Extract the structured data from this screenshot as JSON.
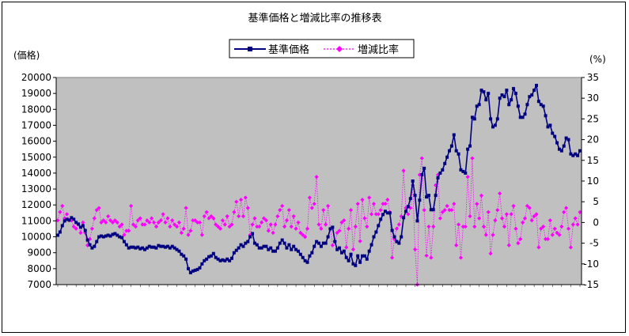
{
  "chart_data": {
    "type": "line",
    "title": "基準価格と増減比率の推移表",
    "ylabel": "(価格)",
    "y2label": "(%)",
    "ylim": [
      7000,
      20000
    ],
    "y2lim": [
      -15,
      35
    ],
    "yticks": [
      7000,
      8000,
      9000,
      10000,
      11000,
      12000,
      13000,
      14000,
      15000,
      16000,
      17000,
      18000,
      19000,
      20000
    ],
    "y2ticks": [
      -15,
      -10,
      -5,
      0,
      5,
      10,
      15,
      20,
      25,
      30,
      35
    ],
    "grid": false,
    "legend_position": "top-center",
    "plot_background": "#c0c0c0",
    "series": [
      {
        "name": "基準価格",
        "axis": "left",
        "color": "#000080",
        "marker": "square",
        "line": "solid",
        "values": [
          10100,
          10300,
          10700,
          11000,
          11100,
          11050,
          11200,
          11100,
          10900,
          10800,
          10600,
          10700,
          10400,
          9800,
          9500,
          9300,
          9400,
          9700,
          10000,
          10050,
          10000,
          10050,
          10100,
          10050,
          10150,
          10200,
          10100,
          10000,
          9950,
          9700,
          9500,
          9300,
          9350,
          9350,
          9300,
          9350,
          9250,
          9300,
          9200,
          9300,
          9400,
          9350,
          9350,
          9300,
          9450,
          9400,
          9400,
          9350,
          9400,
          9300,
          9400,
          9300,
          9200,
          9100,
          8900,
          8800,
          8600,
          8000,
          7750,
          7850,
          7900,
          7950,
          8050,
          8300,
          8500,
          8600,
          8750,
          8800,
          8950,
          8700,
          8600,
          8500,
          8550,
          8500,
          8600,
          8500,
          8650,
          9000,
          9150,
          9300,
          9500,
          9400,
          9600,
          9700,
          10000,
          10200,
          9600,
          9500,
          9300,
          9300,
          9400,
          9400,
          9200,
          9300,
          9100,
          9100,
          9300,
          9600,
          9800,
          9600,
          9300,
          9500,
          9200,
          9400,
          9200,
          9100,
          8900,
          8700,
          8500,
          8400,
          8800,
          9000,
          9400,
          9700,
          9600,
          9400,
          9600,
          9600,
          10000,
          10500,
          10600,
          9700,
          9200,
          9300,
          9000,
          9100,
          8700,
          8500,
          8900,
          8300,
          8200,
          8800,
          8400,
          8800,
          8800,
          8600,
          9100,
          9500,
          10000,
          10300,
          10700,
          11100,
          11400,
          11600,
          11500,
          11500,
          10400,
          10000,
          9700,
          9600,
          10000,
          11200,
          11600,
          11900,
          12400,
          13500,
          12600,
          11000,
          12300,
          13900,
          14300,
          12500,
          12600,
          11700,
          11700,
          12600,
          13700,
          14000,
          14200,
          14600,
          15000,
          15400,
          15700,
          16400,
          15400,
          15200,
          14200,
          14100,
          14000,
          15500,
          15700,
          17500,
          17400,
          18200,
          18300,
          19200,
          19100,
          18600,
          19000,
          17400,
          16900,
          17000,
          17400,
          18700,
          18900,
          18800,
          19200,
          18300,
          18600,
          19300,
          19000,
          18200,
          17500,
          17500,
          17700,
          18300,
          18800,
          18900,
          19200,
          19500,
          18500,
          18300,
          18200,
          17600,
          16900,
          17000,
          16500,
          16300,
          15900,
          15500,
          15400,
          15700,
          16200,
          16100,
          15200,
          15100,
          15200,
          15100,
          15400
        ]
      },
      {
        "name": "増減比率",
        "axis": "right",
        "color": "#ff00ff",
        "marker": "diamond",
        "line": "dotted",
        "values": [
          0.5,
          2.5,
          4,
          1,
          2,
          0.5,
          0.5,
          -1,
          -1.5,
          -0.5,
          -2.5,
          0,
          -2.5,
          -5.5,
          -4,
          -1.5,
          1,
          3,
          3.5,
          0,
          0.5,
          0,
          1.5,
          0.5,
          0,
          0.5,
          0,
          -1,
          -0.5,
          -3,
          -2,
          -2,
          4,
          -0.5,
          -1,
          0.5,
          1,
          -0.5,
          -0.5,
          0.5,
          0,
          1,
          0,
          -1,
          0,
          0.5,
          2,
          0,
          1,
          -1,
          0.5,
          -0.5,
          -1,
          0,
          -2.5,
          -1.5,
          3.5,
          -3,
          -2,
          0.5,
          0.5,
          0,
          0,
          -3,
          1.5,
          2.5,
          1,
          1.5,
          1,
          -0.5,
          -1,
          -1.5,
          0.5,
          -0.5,
          1.5,
          -1,
          -0.5,
          2.5,
          5,
          1.5,
          5.5,
          1.5,
          6,
          3.5,
          -3,
          -0.5,
          1,
          -1,
          -1,
          0,
          1,
          0.5,
          -2,
          -0.5,
          -2.5,
          -0.5,
          1.5,
          3,
          4,
          -1,
          0.5,
          3,
          -1,
          1.5,
          -1.5,
          0,
          -2.5,
          -3,
          -3.5,
          -1.5,
          6,
          3.5,
          4.5,
          11,
          -0.5,
          -1.5,
          3,
          -0.5,
          4,
          -1.5,
          -5.5,
          -4.5,
          -2.5,
          -2,
          0,
          0.5,
          -6,
          -1.5,
          3,
          -6.5,
          -1,
          4.5,
          -4.5,
          5.5,
          1,
          -1,
          6,
          2,
          4.5,
          2,
          2,
          3,
          4.5,
          4.5,
          5.5,
          2.5,
          -8.5,
          -4,
          -1.5,
          -0.5,
          1.5,
          12.5,
          3.5,
          2,
          3.5,
          9,
          -6.5,
          -15,
          11.5,
          15.5,
          3,
          -8,
          -1,
          -8.5,
          -1,
          9,
          11.5,
          1,
          2.5,
          3,
          4,
          3,
          3,
          4.5,
          -5.5,
          -0.5,
          -8.5,
          -1,
          -1,
          11,
          1.5,
          15.5,
          -1,
          4.5,
          1,
          6.5,
          -1,
          -3,
          2.5,
          -7.5,
          -3,
          0.5,
          3,
          7,
          1,
          -1,
          2,
          -5.5,
          2,
          4,
          -1.5,
          -5,
          -4,
          0,
          1,
          4,
          3.5,
          0.5,
          1.5,
          2,
          -6,
          -1.5,
          -1,
          -4,
          -4,
          0.5,
          -3,
          -1.5,
          -2.5,
          -3,
          -1,
          2.5,
          3.5,
          -1.5,
          -6,
          -0.5,
          1,
          -0.5,
          2.5
        ]
      }
    ]
  }
}
